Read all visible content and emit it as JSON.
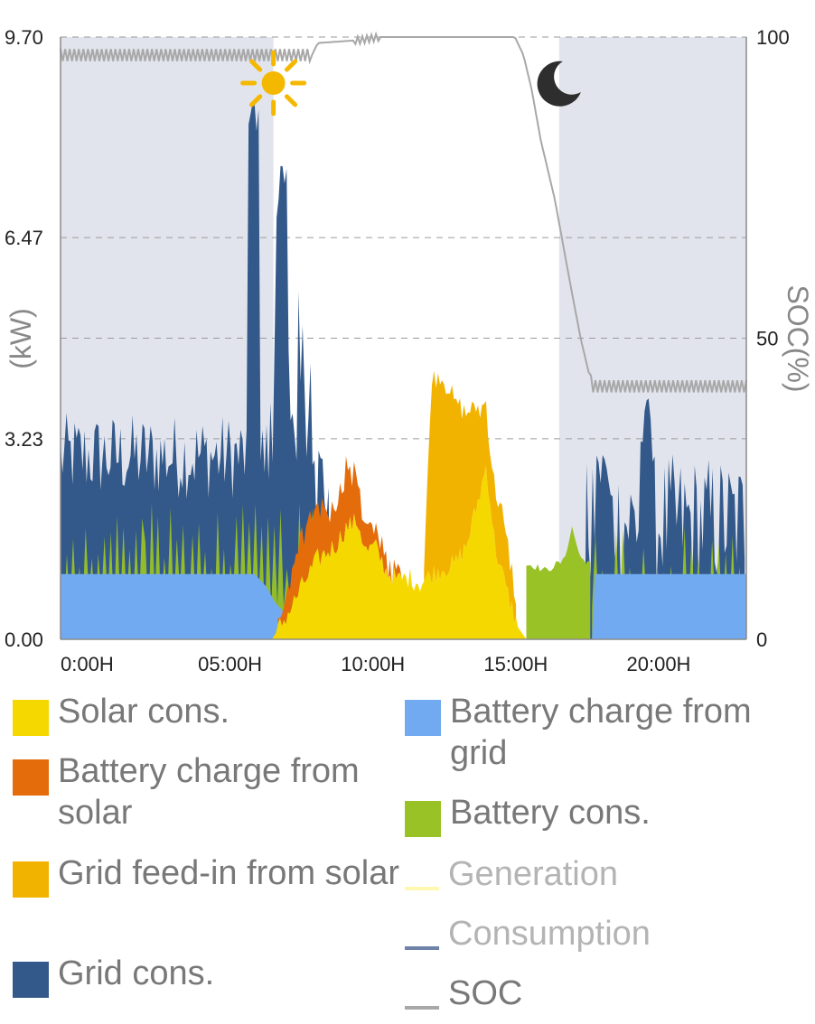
{
  "chart_data": {
    "type": "area",
    "x_unit": "hour",
    "x_range": [
      0,
      24
    ],
    "y_left": {
      "label": "(kW)",
      "ticks": [
        "0.00",
        "3.23",
        "6.47",
        "9.70"
      ],
      "range": [
        0,
        9.7
      ]
    },
    "y_right": {
      "label": "SOC(%)",
      "ticks": [
        "0",
        "50",
        "100"
      ],
      "range": [
        0,
        100
      ]
    },
    "x_ticks": [
      {
        "x": 0,
        "label": "0:00H"
      },
      {
        "x": 5,
        "label": "05:00H"
      },
      {
        "x": 10,
        "label": "10:00H"
      },
      {
        "x": 15,
        "label": "15:00H"
      },
      {
        "x": 20,
        "label": "20:00H"
      }
    ],
    "night_periods": [
      [
        0,
        7.45
      ],
      [
        17.45,
        24
      ]
    ],
    "icons": {
      "sun_at_hour": 7.45,
      "moon_at_hour": 17.45
    },
    "series": [
      {
        "name": "Battery charge from grid",
        "color": "#71aaf0",
        "layer": "bottom",
        "x": [
          0,
          6.8,
          7.2,
          7.5,
          8.0,
          8.5,
          8.9,
          9.2,
          18.6,
          18.65,
          24
        ],
        "y": [
          1.05,
          1.05,
          0.85,
          0.6,
          0.35,
          0.15,
          0.02,
          0,
          0,
          1.05,
          1.05
        ]
      },
      {
        "name": "Battery cons.",
        "color": "#99c226",
        "layer": "bottom",
        "x": [
          16.3,
          16.5,
          17.0,
          17.3,
          17.6,
          17.9,
          18.2,
          18.5,
          18.6
        ],
        "y": [
          1.2,
          1.2,
          1.1,
          1.2,
          1.25,
          1.8,
          1.3,
          1.25,
          1.1
        ]
      },
      {
        "name": "Solar cons.",
        "color": "#f5d800",
        "layer": "bottom",
        "x": [
          7.4,
          8.0,
          8.5,
          9.0,
          9.6,
          10.0,
          10.4,
          10.7,
          11.0,
          11.4,
          11.8,
          12.2,
          12.6,
          13.0,
          13.4,
          13.8,
          14.2,
          14.6,
          14.9,
          15.2,
          15.6,
          16.0,
          16.3
        ],
        "y": [
          0,
          0.45,
          0.9,
          1.3,
          1.5,
          1.8,
          1.9,
          1.4,
          1.5,
          1.1,
          0.95,
          1.0,
          0.9,
          1.05,
          1.15,
          1.2,
          1.5,
          2.2,
          2.8,
          1.5,
          0.8,
          0.2,
          0
        ]
      },
      {
        "name": "Battery charge from solar",
        "color": "#e46c0a",
        "layer": "stack",
        "x": [
          7.6,
          8.0,
          8.5,
          9.0,
          9.5,
          10.0,
          10.4,
          10.8,
          11.2,
          11.6,
          12.0
        ],
        "y": [
          0,
          0.45,
          0.75,
          0.85,
          0.6,
          0.95,
          0.7,
          0.25,
          0.2,
          0.1,
          0
        ]
      },
      {
        "name": "Grid feed-in from solar",
        "color": "#f2b300",
        "layer": "stack",
        "x": [
          12.7,
          13.0,
          13.4,
          13.8,
          14.2,
          14.6,
          15.0,
          15.4,
          15.8,
          16.0
        ],
        "y": [
          0,
          3.2,
          3.05,
          2.6,
          2.15,
          1.5,
          0.85,
          1.0,
          0.6,
          0
        ]
      },
      {
        "name": "Grid cons.",
        "color": "#33598a",
        "layer": "top",
        "peaks": [
          {
            "x": 6.75,
            "y": 8.8
          },
          {
            "x": 7.75,
            "y": 7.7
          },
          {
            "x": 19.0,
            "y": 3.1
          },
          {
            "x": 20.5,
            "y": 3.9
          }
        ],
        "typical_night_range": [
          2.0,
          3.4
        ]
      },
      {
        "name": "Generation",
        "color": "#fff8b0",
        "layer": "line"
      },
      {
        "name": "Consumption",
        "color": "#6f82a8",
        "layer": "line"
      },
      {
        "name": "SOC",
        "color": "#a8a8a8",
        "layer": "line",
        "axis": "right",
        "x": [
          0,
          8.8,
          9.0,
          10.5,
          11.2,
          15.9,
          16.2,
          16.5,
          16.8,
          17.3,
          17.8,
          18.2,
          18.6,
          24
        ],
        "y": [
          97,
          97,
          99,
          99.5,
          100,
          100,
          97,
          91,
          83,
          73,
          60,
          50,
          42,
          42
        ]
      }
    ]
  },
  "legend": {
    "solar_cons": "Solar cons.",
    "battery_charge_solar": "Battery charge from solar",
    "grid_feed_in_solar": "Grid feed-in from solar",
    "grid_cons": "Grid cons.",
    "battery_charge_grid": "Battery charge from grid",
    "battery_cons": "Battery cons.",
    "generation": "Generation",
    "consumption": "Consumption",
    "soc": "SOC"
  },
  "colors": {
    "solar_cons": "#f5d800",
    "battery_charge_solar": "#e46c0a",
    "grid_feed_in_solar": "#f2b300",
    "grid_cons": "#33598a",
    "battery_charge_grid": "#71aaf0",
    "battery_cons": "#99c226",
    "generation": "#fff8b0",
    "consumption": "#6f82a8",
    "soc": "#a8a8a8",
    "night_band": "#e2e4ed",
    "sun": "#f5b800",
    "moon": "#2e2e2e"
  },
  "icons": {
    "sun": "sun-icon",
    "moon": "moon-icon"
  }
}
